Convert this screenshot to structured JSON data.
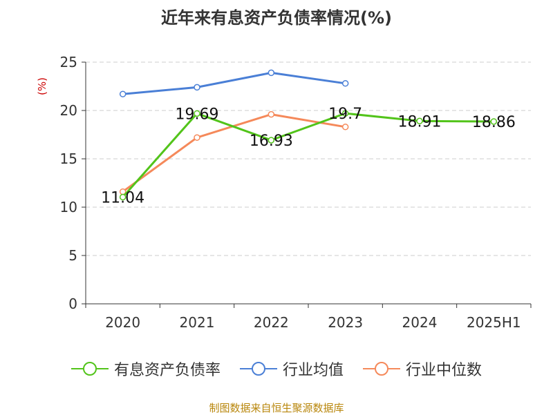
{
  "chart_data": {
    "type": "line",
    "title": "近年来有息资产负债率情况(%)",
    "ylabel": "(%)",
    "categories": [
      "2020",
      "2021",
      "2022",
      "2023",
      "2024",
      "2025H1"
    ],
    "ylim": [
      0,
      25
    ],
    "yticks": [
      0,
      5,
      10,
      15,
      20,
      25
    ],
    "grid": true,
    "legend_position": "bottom",
    "series": [
      {
        "name": "有息资产负债率",
        "color": "#52c41a",
        "values": [
          11.04,
          19.69,
          16.93,
          19.7,
          18.91,
          18.86
        ],
        "data_labels": [
          "11.04",
          "19.69",
          "16.93",
          "19.7",
          "18.91",
          "18.86"
        ]
      },
      {
        "name": "行业均值",
        "color": "#4a7fd6",
        "values": [
          21.7,
          22.4,
          23.9,
          22.8,
          null,
          null
        ]
      },
      {
        "name": "行业中位数",
        "color": "#f5895a",
        "values": [
          11.6,
          17.2,
          19.6,
          18.3,
          null,
          null
        ]
      }
    ],
    "source": "制图数据来自恒生聚源数据库"
  }
}
